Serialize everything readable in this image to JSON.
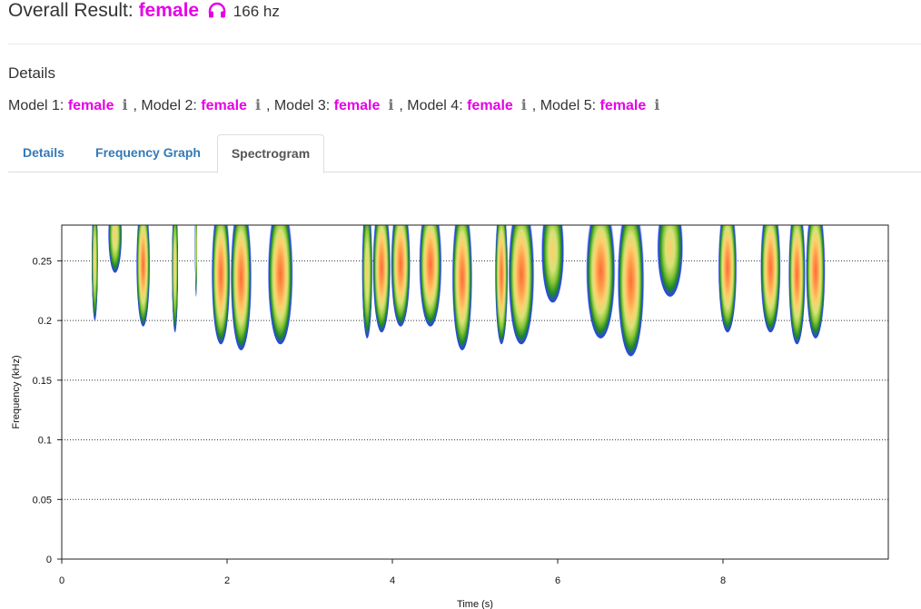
{
  "overall": {
    "label": "Overall Result:",
    "result": "female",
    "icon": "headphones-icon",
    "pitch": "166 hz"
  },
  "details": {
    "title": "Details"
  },
  "models": [
    {
      "label": "Model 1:",
      "result": "female"
    },
    {
      "label": "Model 2:",
      "result": "female"
    },
    {
      "label": "Model 3:",
      "result": "female"
    },
    {
      "label": "Model 4:",
      "result": "female"
    },
    {
      "label": "Model 5:",
      "result": "female"
    }
  ],
  "tabs": [
    {
      "label": "Details",
      "active": false
    },
    {
      "label": "Frequency Graph",
      "active": false
    },
    {
      "label": "Spectrogram",
      "active": true
    }
  ],
  "colors": {
    "accent": "#e600e6",
    "link": "#337ab7"
  },
  "chart_data": {
    "type": "heatmap",
    "xlabel": "Time (s)",
    "ylabel": "Frequency (kHz)",
    "xlim": [
      0,
      10
    ],
    "ylim": [
      0,
      0.28
    ],
    "xticks": [
      "0",
      "2",
      "4",
      "6",
      "8"
    ],
    "yticks": [
      "0",
      "0.05",
      "0.1",
      "0.15",
      "0.2",
      "0.25"
    ],
    "grid": "horizontal-dotted",
    "segments": [
      {
        "start": 0.36,
        "end": 0.44,
        "low": 0.2,
        "peak": 0.27,
        "strength": 0.35
      },
      {
        "start": 0.56,
        "end": 0.73,
        "low": 0.24,
        "peak": 0.27,
        "strength": 0.3
      },
      {
        "start": 0.9,
        "end": 1.07,
        "low": 0.195,
        "peak": 0.25,
        "strength": 0.5
      },
      {
        "start": 1.33,
        "end": 1.41,
        "low": 0.19,
        "peak": 0.26,
        "strength": 0.3
      },
      {
        "start": 1.61,
        "end": 1.64,
        "low": 0.22,
        "peak": 0.24,
        "strength": 0.1
      },
      {
        "start": 1.81,
        "end": 2.04,
        "low": 0.18,
        "peak": 0.245,
        "strength": 0.6
      },
      {
        "start": 2.04,
        "end": 2.3,
        "low": 0.175,
        "peak": 0.245,
        "strength": 0.55
      },
      {
        "start": 2.49,
        "end": 2.8,
        "low": 0.18,
        "peak": 0.23,
        "strength": 0.8
      },
      {
        "start": 3.63,
        "end": 3.76,
        "low": 0.185,
        "peak": 0.25,
        "strength": 0.35
      },
      {
        "start": 3.76,
        "end": 3.98,
        "low": 0.19,
        "peak": 0.245,
        "strength": 0.6
      },
      {
        "start": 3.98,
        "end": 4.22,
        "low": 0.195,
        "peak": 0.24,
        "strength": 0.7
      },
      {
        "start": 4.32,
        "end": 4.6,
        "low": 0.195,
        "peak": 0.245,
        "strength": 0.6
      },
      {
        "start": 4.72,
        "end": 4.97,
        "low": 0.175,
        "peak": 0.23,
        "strength": 0.55
      },
      {
        "start": 5.24,
        "end": 5.4,
        "low": 0.18,
        "peak": 0.23,
        "strength": 0.7
      },
      {
        "start": 5.4,
        "end": 5.72,
        "low": 0.18,
        "peak": 0.225,
        "strength": 0.7
      },
      {
        "start": 5.8,
        "end": 6.08,
        "low": 0.215,
        "peak": 0.27,
        "strength": 0.35
      },
      {
        "start": 6.34,
        "end": 6.7,
        "low": 0.185,
        "peak": 0.235,
        "strength": 0.9
      },
      {
        "start": 6.72,
        "end": 7.05,
        "low": 0.17,
        "peak": 0.22,
        "strength": 0.85
      },
      {
        "start": 7.2,
        "end": 7.52,
        "low": 0.22,
        "peak": 0.265,
        "strength": 0.35
      },
      {
        "start": 7.94,
        "end": 8.17,
        "low": 0.19,
        "peak": 0.235,
        "strength": 0.55
      },
      {
        "start": 8.45,
        "end": 8.7,
        "low": 0.19,
        "peak": 0.24,
        "strength": 0.55
      },
      {
        "start": 8.79,
        "end": 9.0,
        "low": 0.18,
        "peak": 0.23,
        "strength": 0.55
      },
      {
        "start": 9.0,
        "end": 9.24,
        "low": 0.185,
        "peak": 0.23,
        "strength": 0.6
      }
    ]
  }
}
